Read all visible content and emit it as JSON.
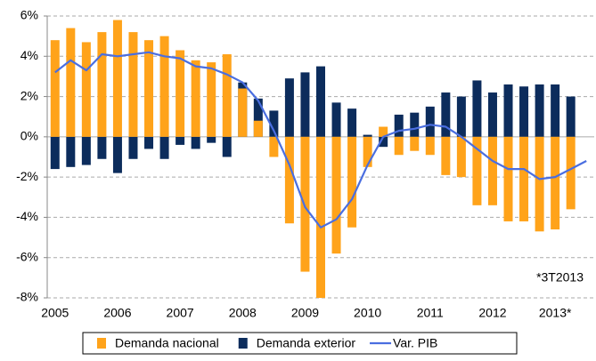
{
  "chart_data": {
    "type": "bar",
    "annotation": "*3T2013",
    "categories": [
      "2005",
      null,
      null,
      null,
      "2006",
      null,
      null,
      null,
      "2007",
      null,
      null,
      null,
      "2008",
      null,
      null,
      null,
      "2009",
      null,
      null,
      null,
      "2010",
      null,
      null,
      null,
      "2011",
      null,
      null,
      null,
      "2012",
      null,
      null,
      null,
      "2013*",
      null,
      null
    ],
    "series": [
      {
        "name": "Demanda exterior",
        "color": "#0c2c5c",
        "type": "bar",
        "values": [
          -1.6,
          -1.5,
          -1.4,
          -1.1,
          -1.8,
          -1.1,
          -0.6,
          -1.1,
          -0.4,
          -0.6,
          -0.3,
          -1.0,
          2.7,
          1.9,
          1.3,
          2.9,
          3.2,
          3.5,
          1.7,
          1.4,
          0.1,
          -0.5,
          1.1,
          1.2,
          1.5,
          2.2,
          2.0,
          2.8,
          2.2,
          2.6,
          2.5,
          2.6,
          2.6,
          2.0,
          null
        ]
      },
      {
        "name": "Demanda nacional",
        "color": "#ffa31a",
        "type": "bar",
        "values": [
          4.8,
          5.4,
          4.7,
          5.2,
          5.8,
          5.2,
          4.8,
          5.0,
          4.3,
          3.8,
          3.7,
          4.1,
          2.4,
          0.8,
          -1.0,
          -4.3,
          -6.7,
          -8.0,
          -5.8,
          -4.5,
          -1.5,
          0.5,
          -0.9,
          -0.7,
          -0.9,
          -1.9,
          -2.0,
          -3.4,
          -3.4,
          -4.2,
          -4.2,
          -4.7,
          -4.6,
          -3.6,
          null
        ]
      },
      {
        "name": "Var. PIB",
        "color": "#4a6ee0",
        "type": "line",
        "values": [
          3.2,
          3.8,
          3.3,
          4.1,
          4.0,
          4.1,
          4.2,
          4.0,
          3.9,
          3.5,
          3.4,
          3.1,
          2.7,
          1.8,
          0.3,
          -1.4,
          -3.5,
          -4.5,
          -4.1,
          -3.1,
          -1.4,
          0.0,
          0.3,
          0.4,
          0.6,
          0.5,
          0.0,
          -0.6,
          -1.2,
          -1.6,
          -1.6,
          -2.1,
          -2.0,
          -1.6,
          -1.2
        ]
      }
    ],
    "legend_order": [
      1,
      0,
      2
    ],
    "ylim": [
      -8,
      6
    ],
    "yticks": [
      {
        "value": -8,
        "label": "-8%"
      },
      {
        "value": -6,
        "label": "-6%"
      },
      {
        "value": -4,
        "label": "-4%"
      },
      {
        "value": -2,
        "label": "-2%"
      },
      {
        "value": 0,
        "label": "0%"
      },
      {
        "value": 2,
        "label": "2%"
      },
      {
        "value": 4,
        "label": "4%"
      },
      {
        "value": 6,
        "label": "6%"
      }
    ],
    "grid": true
  }
}
